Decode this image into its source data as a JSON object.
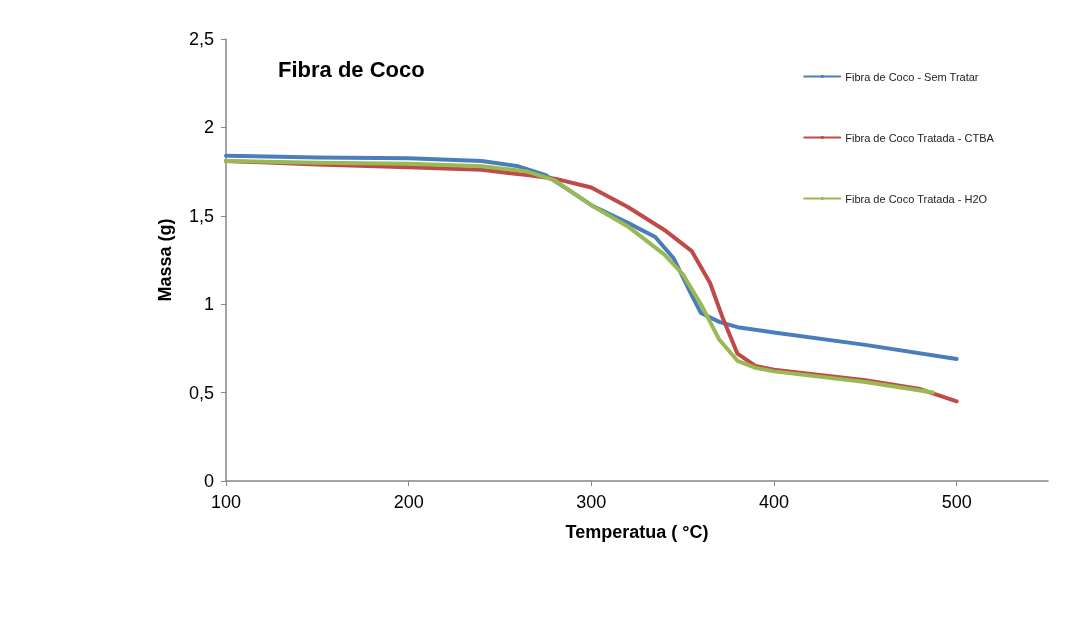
{
  "chart_data": {
    "type": "line",
    "title": "Fibra de Coco",
    "xlabel": "Temperatua ( °C)",
    "ylabel": "Massa (g)",
    "xlim": [
      100,
      550
    ],
    "xticks": [
      100,
      200,
      300,
      400,
      500
    ],
    "ylim": [
      0,
      2.5
    ],
    "yticks": [
      0,
      {
        "value": 0.5,
        "label": "0,5"
      },
      1,
      {
        "value": 1.5,
        "label": "1,5"
      },
      2,
      {
        "value": 2.5,
        "label": "2,5"
      }
    ],
    "grid": false,
    "legend": "top right",
    "marker": "none",
    "line_style": "solid",
    "series": [
      {
        "name": "Fibra de Coco - Sem Tratar",
        "color": "#4a7ebb",
        "x": [
          100,
          150,
          200,
          240,
          260,
          275,
          290,
          300,
          320,
          335,
          345,
          355,
          360,
          370,
          380,
          400,
          450,
          500
        ],
        "values": [
          1.84,
          1.83,
          1.825,
          1.81,
          1.78,
          1.73,
          1.63,
          1.56,
          1.46,
          1.38,
          1.26,
          1.05,
          0.95,
          0.9,
          0.87,
          0.84,
          0.77,
          0.69
        ]
      },
      {
        "name": "Fibra de Coco Tratada - CTBA",
        "color": "#be4b48",
        "x": [
          100,
          150,
          200,
          240,
          265,
          280,
          300,
          320,
          340,
          355,
          365,
          372,
          380,
          390,
          400,
          450,
          480,
          500
        ],
        "values": [
          1.81,
          1.79,
          1.775,
          1.76,
          1.73,
          1.71,
          1.66,
          1.55,
          1.42,
          1.3,
          1.12,
          0.92,
          0.72,
          0.65,
          0.63,
          0.57,
          0.52,
          0.45
        ]
      },
      {
        "name": "Fibra de Coco Tratada - H2O",
        "color": "#98b954",
        "x": [
          100,
          150,
          200,
          240,
          265,
          280,
          300,
          320,
          340,
          350,
          360,
          370,
          380,
          390,
          400,
          450,
          487
        ],
        "values": [
          1.81,
          1.8,
          1.795,
          1.78,
          1.75,
          1.7,
          1.56,
          1.44,
          1.28,
          1.17,
          1.0,
          0.8,
          0.68,
          0.64,
          0.62,
          0.56,
          0.5
        ]
      }
    ]
  }
}
